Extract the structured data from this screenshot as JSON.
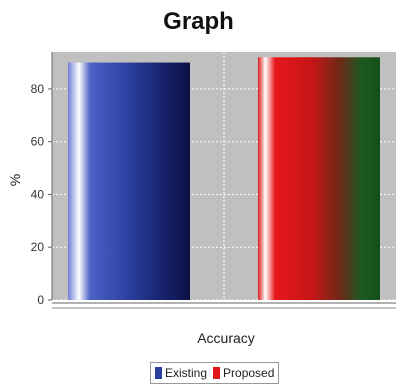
{
  "chart_data": {
    "type": "bar",
    "title": "Graph",
    "xlabel": "Accuracy",
    "ylabel": "%",
    "categories": [
      "Accuracy"
    ],
    "series": [
      {
        "name": "Existing",
        "values": [
          90
        ],
        "color": "#2a3f9e"
      },
      {
        "name": "Proposed",
        "values": [
          92
        ],
        "color": "#e0161c"
      }
    ],
    "ylim": [
      0,
      94
    ],
    "yticks": [
      0,
      20,
      40,
      60,
      80
    ],
    "grid": true,
    "background_color": "#c0c0c0",
    "legend_position": "bottom"
  }
}
